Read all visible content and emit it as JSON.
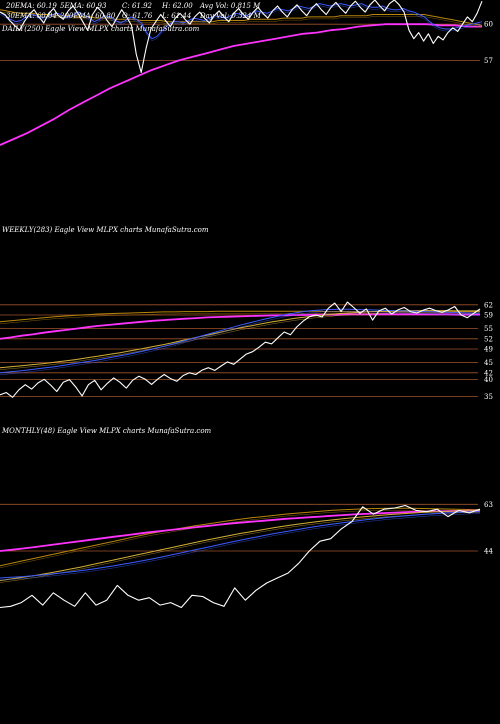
{
  "header": {
    "ema20": "20EMA: 60.19",
    "ema30": "30EMA: 60.04",
    "mid_top": "5EMA: 60.93",
    "mid_bottom": "200EMA: 60.80",
    "close_top": "C: 61.92",
    "close_bottom": "O: 61.76",
    "high": "H: 62.00",
    "low": "L: 61.44",
    "avg_vol": "Avg Vol: 0.815 M",
    "day_vol": "Day Vol: 0.324 M"
  },
  "panels": {
    "daily": {
      "caption": "DAILY(250) Eagle  View  MLPX  charts MunafaSutra.com",
      "ticks": [
        "60",
        "57"
      ]
    },
    "weekly": {
      "caption": "WEEKLY(283) Eagle  View  MLPX  charts MunafaSutra.com",
      "ticks": [
        "62",
        "59",
        "55",
        "52",
        "49",
        "45",
        "42",
        "40",
        "35"
      ]
    },
    "monthly": {
      "caption": "MONTHLY(48) Eagle  View  MLPX  charts MunafaSutra.com",
      "ticks": [
        "63",
        "44"
      ]
    }
  },
  "colors": {
    "background": "#000000",
    "price": "#ffffff",
    "ma_short": "#3a5bff",
    "ma_long": "#ff33ff",
    "ma_brown": "#b8860b",
    "ma_gold": "#d4af37",
    "level_line": "#a0522d",
    "text": "#ffffff"
  },
  "chart_data": [
    {
      "type": "line",
      "title": "DAILY(250) Eagle View MLPX charts MunafaSutra.com",
      "ylim": [
        50,
        62
      ],
      "levels": [
        60,
        57
      ],
      "series": [
        {
          "color": "#ffffff",
          "values": [
            61.0,
            60.8,
            60.3,
            59.9,
            59.5,
            60.2,
            60.8,
            61.2,
            60.6,
            60.1,
            60.9,
            61.3,
            60.7,
            60.4,
            61.1,
            61.5,
            60.9,
            60.2,
            59.5,
            60.8,
            61.4,
            61.0,
            60.3,
            59.8,
            60.5,
            61.2,
            60.6,
            59.9,
            57.5,
            56.0,
            58.0,
            59.6,
            60.2,
            60.8,
            60.3,
            59.8,
            60.5,
            60.9,
            60.4,
            60.0,
            60.6,
            61.0,
            60.5,
            60.1,
            60.7,
            61.1,
            60.6,
            60.2,
            60.9,
            61.3,
            60.8,
            60.4,
            61.0,
            61.4,
            60.9,
            60.5,
            61.1,
            61.5,
            61.0,
            60.6,
            61.2,
            61.6,
            61.1,
            60.7,
            61.3,
            61.7,
            61.2,
            60.8,
            61.4,
            61.8,
            61.3,
            60.9,
            61.5,
            61.9,
            61.4,
            61.0,
            61.6,
            62.0,
            61.5,
            61.1,
            61.7,
            62.0,
            61.6,
            61.0,
            59.5,
            58.8,
            59.3,
            58.6,
            59.2,
            58.4,
            59.0,
            58.7,
            59.3,
            59.7,
            59.4,
            60.0,
            60.6,
            60.2,
            60.9,
            61.9
          ]
        },
        {
          "color": "#3a5bff",
          "values": [
            61.0,
            60.7,
            60.4,
            60.2,
            60.3,
            60.6,
            60.8,
            60.7,
            60.5,
            60.6,
            60.8,
            60.9,
            60.7,
            60.6,
            60.8,
            61.0,
            60.8,
            60.5,
            60.2,
            60.4,
            60.7,
            60.6,
            60.3,
            60.1,
            60.3,
            60.6,
            60.4,
            60.1,
            59.3,
            58.8,
            59.0,
            59.5,
            59.9,
            60.2,
            60.2,
            60.1,
            60.3,
            60.5,
            60.4,
            60.3,
            60.5,
            60.7,
            60.6,
            60.5,
            60.7,
            60.9,
            60.8,
            60.7,
            60.9,
            61.1,
            61.0,
            60.9,
            61.1,
            61.3,
            61.2,
            61.1,
            61.3,
            61.5,
            61.4,
            61.3,
            61.5,
            61.7,
            61.6,
            61.5,
            61.6,
            61.7,
            61.6,
            61.5,
            61.6,
            61.7,
            61.5,
            61.4,
            61.4,
            61.5,
            61.3,
            61.2,
            61.2,
            61.3,
            61.1,
            61.0,
            60.8,
            60.6,
            60.2,
            59.9,
            59.7,
            59.6,
            59.6,
            59.7,
            59.8,
            59.9,
            60.0,
            60.1,
            60.2
          ]
        },
        {
          "color": "#b8860b",
          "values": [
            61.2,
            61.1,
            61.0,
            60.9,
            60.9,
            60.9,
            60.8,
            60.8,
            60.8,
            60.7,
            60.7,
            60.7,
            60.6,
            60.6,
            60.6,
            60.5,
            60.5,
            60.5,
            60.4,
            60.4,
            60.4,
            60.4,
            60.3,
            60.3,
            60.3,
            60.3,
            60.2,
            60.2,
            60.2,
            60.2,
            60.2,
            60.2,
            60.2,
            60.2,
            60.3,
            60.3,
            60.3,
            60.3,
            60.3,
            60.4,
            60.4,
            60.4,
            60.4,
            60.4,
            60.5,
            60.5,
            60.5,
            60.5,
            60.6,
            60.6,
            60.6,
            60.6,
            60.6,
            60.7,
            60.7,
            60.7,
            60.7,
            60.7,
            60.8,
            60.8,
            60.8,
            60.8,
            60.8,
            60.8,
            60.8,
            60.8,
            60.8,
            60.7,
            60.6,
            60.5,
            60.4,
            60.3,
            60.2,
            60.1,
            60.0,
            59.9
          ]
        },
        {
          "color": "#ff33ff",
          "values": [
            50.0,
            50.5,
            51.0,
            51.6,
            52.2,
            52.9,
            53.5,
            54.1,
            54.7,
            55.2,
            55.7,
            56.2,
            56.6,
            57.0,
            57.3,
            57.6,
            57.9,
            58.2,
            58.4,
            58.6,
            58.8,
            59.0,
            59.2,
            59.3,
            59.5,
            59.6,
            59.8,
            59.9,
            60.0,
            60.0,
            60.0,
            60.0,
            59.9,
            59.9,
            59.8,
            59.8
          ]
        }
      ]
    },
    {
      "type": "line",
      "title": "WEEKLY(283) Eagle View MLPX charts MunafaSutra.com",
      "ylim": [
        34,
        64
      ],
      "levels": [
        62,
        59,
        55,
        52,
        49,
        45,
        42,
        40,
        35
      ],
      "series": [
        {
          "color": "#ffffff",
          "values": [
            35.5,
            36.2,
            34.8,
            37.0,
            38.5,
            37.2,
            39.0,
            40.1,
            38.4,
            36.5,
            39.2,
            40.0,
            37.8,
            35.2,
            38.5,
            39.8,
            37.0,
            38.9,
            40.5,
            39.2,
            37.5,
            39.8,
            41.0,
            40.1,
            38.6,
            40.2,
            41.5,
            40.3,
            39.5,
            41.2,
            42.0,
            41.5,
            42.8,
            43.5,
            42.7,
            44.0,
            45.2,
            44.5,
            46.0,
            47.5,
            48.2,
            49.5,
            51.0,
            50.5,
            52.3,
            54.0,
            53.2,
            55.5,
            57.2,
            58.5,
            59.0,
            58.4,
            61.0,
            62.5,
            60.0,
            62.8,
            61.2,
            59.5,
            60.8,
            57.5,
            60.2,
            61.0,
            59.3,
            60.5,
            61.2,
            60.0,
            59.6,
            60.4,
            61.0,
            60.3,
            59.8,
            60.5,
            61.5,
            59.0,
            58.2,
            59.5,
            60.8
          ]
        },
        {
          "color": "#3a5bff",
          "values": [
            42.0,
            42.3,
            42.6,
            43.0,
            43.4,
            43.8,
            44.3,
            44.8,
            45.3,
            45.8,
            46.4,
            47.0,
            47.6,
            48.3,
            49.0,
            49.8,
            50.6,
            51.5,
            52.4,
            53.3,
            54.2,
            55.1,
            56.0,
            56.8,
            57.6,
            58.3,
            59.0,
            59.6,
            60.1,
            60.4,
            60.6,
            60.7,
            60.7,
            60.6,
            60.5,
            60.4,
            60.3,
            60.2,
            60.1,
            60.0,
            59.9,
            59.8,
            59.7,
            59.6,
            59.5
          ]
        },
        {
          "color": "#d4af37",
          "values": [
            43.5,
            43.8,
            44.1,
            44.4,
            44.7,
            45.1,
            45.5,
            45.9,
            46.4,
            46.9,
            47.4,
            47.9,
            48.5,
            49.1,
            49.7,
            50.3,
            51.0,
            51.7,
            52.4,
            53.1,
            53.8,
            54.5,
            55.2,
            55.8,
            56.4,
            57.0,
            57.5,
            58.0,
            58.4,
            58.8,
            59.1,
            59.4,
            59.6,
            59.8,
            60.0,
            60.1,
            60.2,
            60.3,
            60.3,
            60.3,
            60.3,
            60.3,
            60.2,
            60.2,
            60.2
          ]
        },
        {
          "color": "#ff33ff",
          "values": [
            52.0,
            52.4,
            52.9,
            53.3,
            53.8,
            54.2,
            54.6,
            55.0,
            55.4,
            55.8,
            56.1,
            56.4,
            56.7,
            57.0,
            57.3,
            57.5,
            57.7,
            57.9,
            58.1,
            58.3,
            58.4,
            58.5,
            58.6,
            58.7,
            58.8,
            58.9,
            58.9,
            59.0,
            59.0,
            59.1,
            59.1,
            59.1,
            59.2,
            59.2,
            59.2,
            59.2,
            59.2,
            59.2,
            59.2,
            59.2,
            59.2,
            59.2,
            59.1,
            59.1,
            59.1
          ]
        },
        {
          "color": "#b8860b",
          "values": [
            57.0,
            57.3,
            57.6,
            57.9,
            58.2,
            58.5,
            58.7,
            58.9,
            59.1,
            59.3,
            59.4,
            59.5,
            59.6,
            59.7,
            59.8,
            59.9,
            59.9,
            60.0,
            60.0,
            60.0,
            60.1,
            60.1,
            60.1,
            60.1,
            60.1,
            60.1,
            60.1,
            60.1,
            60.1,
            60.1,
            60.0,
            60.0,
            60.0,
            60.0,
            60.0,
            60.0,
            60.0,
            60.0,
            60.0,
            60.0,
            60.0,
            60.0,
            60.0,
            60.0,
            60.0
          ]
        }
      ]
    },
    {
      "type": "line",
      "title": "MONTHLY(48) Eagle View MLPX charts MunafaSutra.com",
      "ylim": [
        20,
        68
      ],
      "levels": [
        63,
        44
      ],
      "series": [
        {
          "color": "#ffffff",
          "values": [
            21.0,
            21.5,
            23.0,
            26.0,
            22.0,
            27.0,
            24.0,
            21.5,
            27.0,
            22.0,
            24.0,
            30.0,
            26.0,
            24.0,
            25.0,
            22.0,
            23.0,
            21.0,
            26.0,
            25.5,
            23.0,
            21.5,
            29.0,
            24.0,
            28.0,
            31.0,
            33.0,
            35.0,
            39.0,
            44.0,
            48.0,
            49.0,
            53.0,
            56.0,
            62.0,
            59.0,
            61.0,
            61.5,
            62.5,
            60.5,
            60.0,
            61.0,
            58.0,
            60.5,
            59.5,
            61.0
          ]
        },
        {
          "color": "#3a5bff",
          "values": [
            33.0,
            33.3,
            33.6,
            34.0,
            34.4,
            34.9,
            35.4,
            36.0,
            36.6,
            37.3,
            38.0,
            38.8,
            39.6,
            40.5,
            41.4,
            42.4,
            43.4,
            44.4,
            45.4,
            46.4,
            47.4,
            48.4,
            49.3,
            50.2,
            51.1,
            51.9,
            52.7,
            53.5,
            54.2,
            54.9,
            55.5,
            56.1,
            56.7,
            57.2,
            57.7,
            58.1,
            58.5,
            58.9,
            59.2,
            59.5,
            59.7,
            59.9,
            60.0
          ]
        },
        {
          "color": "#d4af37",
          "values": [
            32.0,
            32.6,
            33.3,
            34.0,
            34.8,
            35.6,
            36.5,
            37.4,
            38.4,
            39.4,
            40.4,
            41.4,
            42.4,
            43.4,
            44.4,
            45.4,
            46.4,
            47.4,
            48.4,
            49.3,
            50.2,
            51.1,
            51.9,
            52.7,
            53.5,
            54.2,
            54.9,
            55.5,
            56.1,
            56.6,
            57.1,
            57.6,
            58.0,
            58.4,
            58.8,
            59.1,
            59.4,
            59.7,
            59.9,
            60.1,
            60.3,
            60.4,
            60.5
          ]
        },
        {
          "color": "#ff33ff",
          "values": [
            44.0,
            44.5,
            45.0,
            45.6,
            46.2,
            46.8,
            47.4,
            48.0,
            48.6,
            49.2,
            49.8,
            50.4,
            51.0,
            51.6,
            52.1,
            52.6,
            53.1,
            53.6,
            54.1,
            54.6,
            55.1,
            55.5,
            55.9,
            56.3,
            56.7,
            57.1,
            57.4,
            57.7,
            58.0,
            58.3,
            58.6,
            58.9,
            59.1,
            59.3,
            59.5,
            59.7,
            59.9,
            60.0,
            60.1,
            60.2,
            60.3,
            60.4,
            60.4
          ]
        },
        {
          "color": "#b8860b",
          "values": [
            38.0,
            39.0,
            40.0,
            41.0,
            42.0,
            43.0,
            44.0,
            45.0,
            46.0,
            47.0,
            48.0,
            49.0,
            50.0,
            51.0,
            51.8,
            52.6,
            53.4,
            54.2,
            54.9,
            55.6,
            56.3,
            56.9,
            57.5,
            58.0,
            58.5,
            59.0,
            59.4,
            59.8,
            60.2,
            60.5,
            60.8,
            61.0,
            61.2,
            61.3,
            61.4,
            61.4,
            61.4,
            61.3,
            61.2,
            61.1,
            61.0,
            60.9,
            60.8
          ]
        }
      ]
    }
  ]
}
